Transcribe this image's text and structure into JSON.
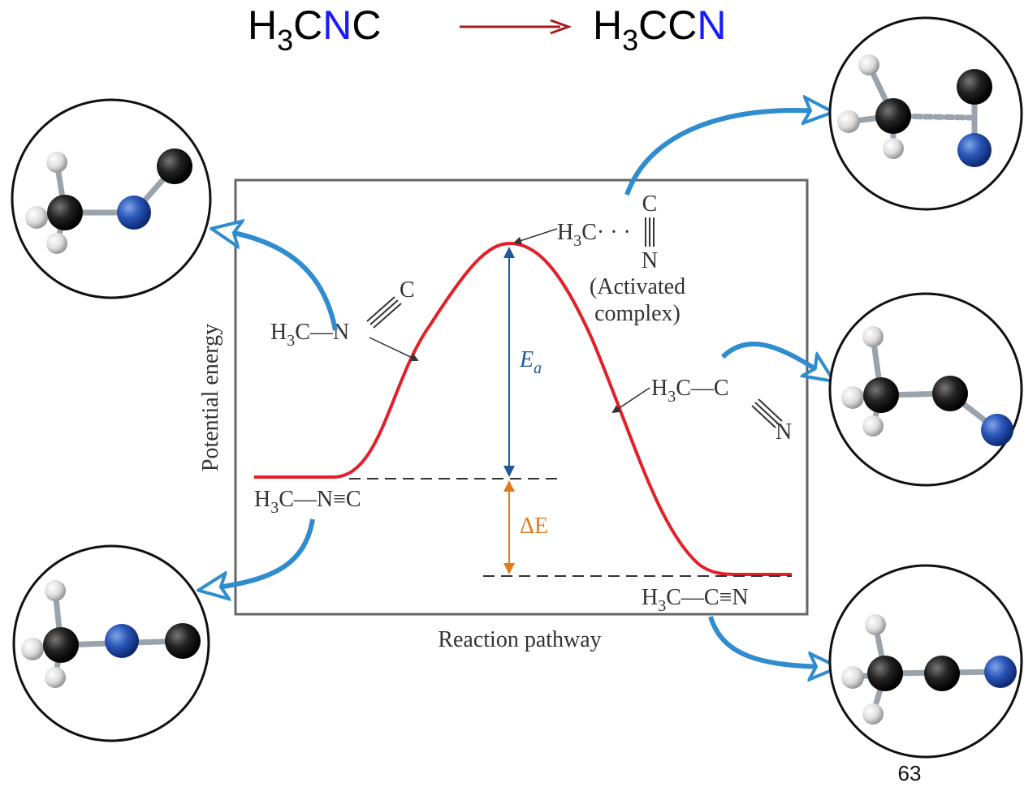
{
  "title": {
    "reactant": [
      "H",
      "3",
      "C",
      "N",
      "C"
    ],
    "product": [
      "H",
      "3",
      "CC",
      "N"
    ]
  },
  "axes": {
    "y_label": "Potential energy",
    "x_label": "Reaction pathway"
  },
  "labels": {
    "reactant": [
      "H",
      "3",
      "C—N≡C"
    ],
    "product": [
      "H",
      "3",
      "C—C≡N"
    ],
    "activated": [
      "H",
      "3",
      "C· · ·",
      "C",
      "N"
    ],
    "activated_note": [
      "(Activated",
      "complex)"
    ],
    "bent_reactant": [
      "H",
      "3",
      "C—N",
      "C"
    ],
    "bent_product": [
      "H",
      "3",
      "C—C",
      "N"
    ],
    "ea": [
      "E",
      "a"
    ],
    "delta_e": "ΔE"
  },
  "page_number": "63"
}
